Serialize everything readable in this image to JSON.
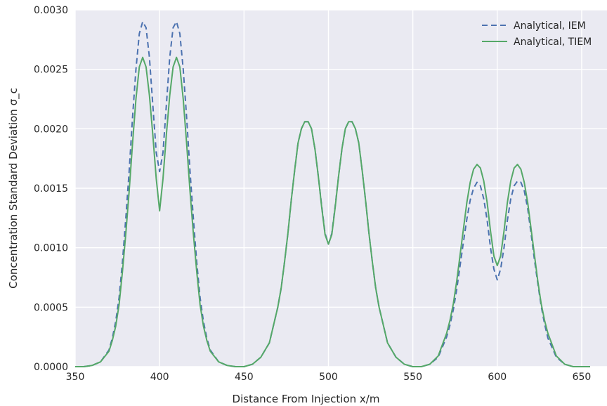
{
  "chart_data": {
    "type": "line",
    "title": "",
    "xlabel": "Distance From Injection x/m",
    "ylabel": "Concentration Standard Deviation σ_c",
    "xlim": [
      350,
      665
    ],
    "ylim": [
      0,
      0.003
    ],
    "x_ticks": [
      350,
      400,
      450,
      500,
      550,
      600,
      650
    ],
    "x_tick_labels": [
      "350",
      "400",
      "450",
      "500",
      "550",
      "600",
      "650"
    ],
    "y_ticks": [
      0,
      0.0005,
      0.001,
      0.0015,
      0.002,
      0.0025,
      0.003
    ],
    "y_tick_labels": [
      "0.0000",
      "0.0005",
      "0.0010",
      "0.0015",
      "0.0020",
      "0.0025",
      "0.0030"
    ],
    "grid": true,
    "legend_position": "top-right",
    "background_color": "#eaeaf2",
    "x": [
      350,
      355,
      360,
      365,
      370,
      372,
      374,
      376,
      378,
      380,
      382,
      384,
      386,
      388,
      390,
      392,
      394,
      396,
      398,
      400,
      402,
      404,
      406,
      408,
      410,
      412,
      414,
      416,
      418,
      420,
      422,
      424,
      426,
      428,
      430,
      435,
      440,
      445,
      450,
      455,
      460,
      465,
      470,
      472,
      474,
      476,
      478,
      480,
      482,
      484,
      486,
      488,
      490,
      492,
      494,
      496,
      498,
      500,
      502,
      504,
      506,
      508,
      510,
      512,
      514,
      516,
      518,
      520,
      522,
      524,
      526,
      528,
      530,
      535,
      540,
      545,
      550,
      555,
      560,
      565,
      570,
      572,
      574,
      576,
      578,
      580,
      582,
      584,
      586,
      588,
      590,
      592,
      594,
      596,
      598,
      600,
      602,
      604,
      606,
      608,
      610,
      612,
      614,
      616,
      618,
      620,
      622,
      624,
      626,
      628,
      630,
      635,
      640,
      645,
      650,
      655
    ],
    "series": [
      {
        "name": "Analytical, IEM",
        "color": "#4c72b0",
        "style": "dashed",
        "values": [
          0.0,
          0.0,
          1e-05,
          4e-05,
          0.00014,
          0.00024,
          0.00038,
          0.00058,
          0.00088,
          0.00125,
          0.00165,
          0.0021,
          0.0025,
          0.0028,
          0.0029,
          0.00285,
          0.0026,
          0.0022,
          0.0018,
          0.00164,
          0.0018,
          0.0022,
          0.0026,
          0.00285,
          0.0029,
          0.0028,
          0.0025,
          0.0021,
          0.00165,
          0.00125,
          0.00088,
          0.00058,
          0.00038,
          0.00024,
          0.00014,
          4e-05,
          1e-05,
          0.0,
          0.0,
          2e-05,
          8e-05,
          0.0002,
          0.0005,
          0.00066,
          0.00088,
          0.00112,
          0.0014,
          0.00165,
          0.00188,
          0.002,
          0.00206,
          0.00206,
          0.002,
          0.00183,
          0.0016,
          0.00135,
          0.00112,
          0.00103,
          0.00112,
          0.00135,
          0.0016,
          0.00183,
          0.002,
          0.00206,
          0.00206,
          0.002,
          0.00188,
          0.00165,
          0.0014,
          0.00112,
          0.00088,
          0.00066,
          0.0005,
          0.0002,
          8e-05,
          2e-05,
          0.0,
          0.0,
          2e-05,
          8e-05,
          0.00025,
          0.00035,
          0.00048,
          0.00065,
          0.00085,
          0.00105,
          0.00124,
          0.0014,
          0.0015,
          0.00155,
          0.00152,
          0.00141,
          0.00123,
          0.001,
          0.00082,
          0.00073,
          0.00082,
          0.001,
          0.00123,
          0.00141,
          0.00152,
          0.00156,
          0.00155,
          0.00148,
          0.00133,
          0.00112,
          0.0009,
          0.0007,
          0.00051,
          0.00036,
          0.00024,
          8e-05,
          2e-05,
          0.0,
          0.0,
          0.0
        ]
      },
      {
        "name": "Analytical, TIEM",
        "color": "#55a868",
        "style": "solid",
        "values": [
          0.0,
          0.0,
          1e-05,
          4e-05,
          0.00013,
          0.00022,
          0.00034,
          0.00052,
          0.0008,
          0.00112,
          0.00148,
          0.00188,
          0.00225,
          0.00252,
          0.0026,
          0.00252,
          0.00228,
          0.00195,
          0.00158,
          0.00131,
          0.00158,
          0.00195,
          0.00228,
          0.00252,
          0.0026,
          0.00252,
          0.00225,
          0.00188,
          0.00148,
          0.00112,
          0.0008,
          0.00052,
          0.00034,
          0.00022,
          0.00013,
          4e-05,
          1e-05,
          0.0,
          0.0,
          2e-05,
          8e-05,
          0.0002,
          0.0005,
          0.00066,
          0.00088,
          0.00112,
          0.0014,
          0.00165,
          0.00188,
          0.002,
          0.00206,
          0.00206,
          0.002,
          0.00183,
          0.0016,
          0.00134,
          0.00111,
          0.00103,
          0.00111,
          0.00134,
          0.0016,
          0.00183,
          0.002,
          0.00206,
          0.00206,
          0.002,
          0.00188,
          0.00165,
          0.0014,
          0.00112,
          0.00088,
          0.00066,
          0.0005,
          0.0002,
          8e-05,
          2e-05,
          0.0,
          0.0,
          2e-05,
          9e-05,
          0.00028,
          0.00039,
          0.00053,
          0.00072,
          0.00094,
          0.00116,
          0.00138,
          0.00155,
          0.00166,
          0.0017,
          0.00167,
          0.00156,
          0.00138,
          0.00114,
          0.00093,
          0.00085,
          0.00093,
          0.00114,
          0.00138,
          0.00156,
          0.00167,
          0.0017,
          0.00166,
          0.00155,
          0.00138,
          0.00116,
          0.00094,
          0.00072,
          0.00053,
          0.00039,
          0.00028,
          9e-05,
          2e-05,
          0.0,
          0.0,
          0.0
        ]
      }
    ]
  }
}
